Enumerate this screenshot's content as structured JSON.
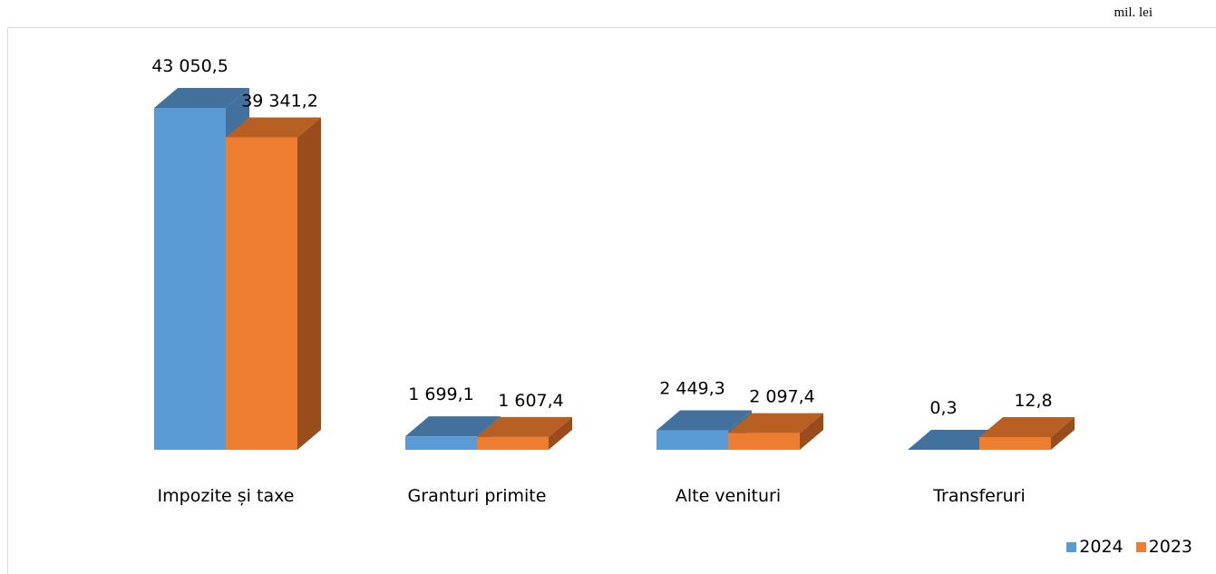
{
  "header": {
    "title": "",
    "unit": "mil. lei"
  },
  "colors": {
    "series_2024": "#5b9bd5",
    "series_2024_top": "#41719c",
    "series_2023": "#ed7d31",
    "series_2023_top": "#b85f23",
    "series_2023_side": "#9a4d1c",
    "frame": "#d9d9d9"
  },
  "chart_data": {
    "type": "bar",
    "style": "3d-clustered-column",
    "categories": [
      "Impozite și taxe",
      "Granturi primite",
      "Alte venituri",
      "Transferuri"
    ],
    "series": [
      {
        "name": "2024",
        "values": [
          43050.5,
          1699.1,
          2449.3,
          0.3
        ],
        "labels": [
          "43 050,5",
          "1 699,1",
          "2 449,3",
          "0,3"
        ]
      },
      {
        "name": "2023",
        "values": [
          39341.2,
          1607.4,
          2097.4,
          12.8
        ],
        "labels": [
          "39 341,2",
          "1 607,4",
          "2 097,4",
          "12,8"
        ]
      }
    ],
    "ylim": [
      0,
      43050.5
    ],
    "grid": false,
    "legend": "bottom-right",
    "xlabel": "",
    "ylabel": ""
  }
}
